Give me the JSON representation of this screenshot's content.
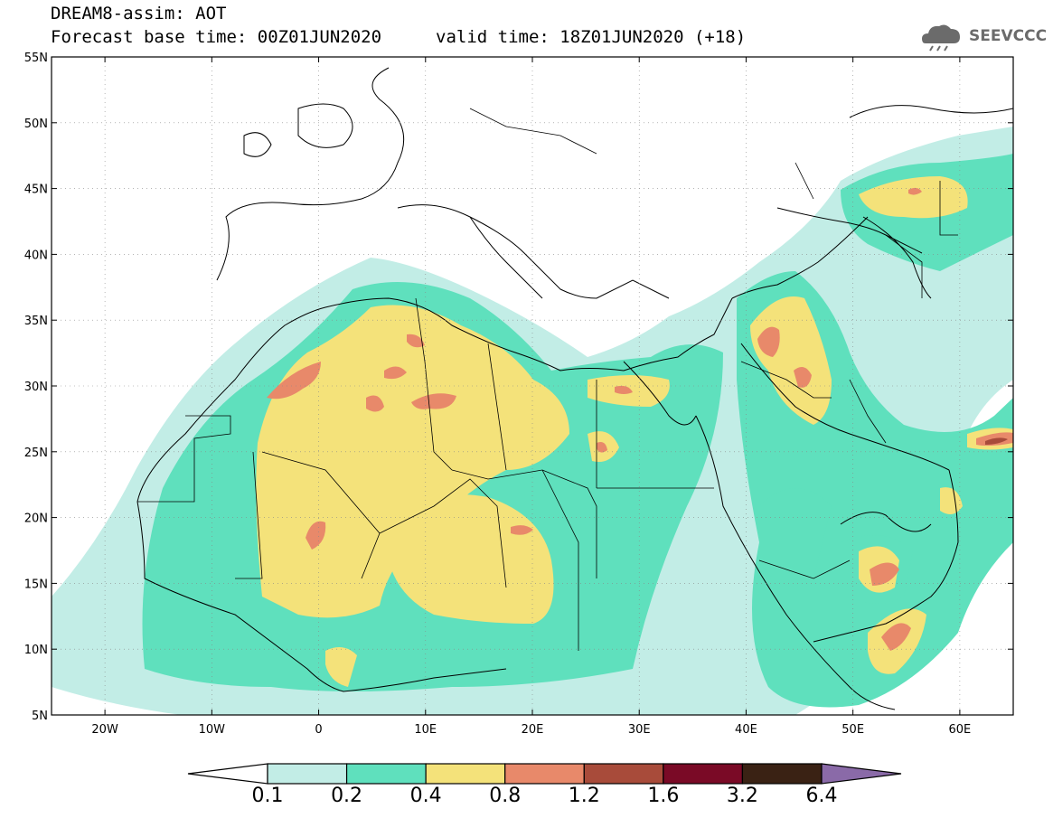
{
  "header": {
    "title_line1": "DREAM8-assim: AOT",
    "title_line2_left": "Forecast base time: 00Z01JUN2020",
    "title_line2_right": "valid time: 18Z01JUN2020 (+18)",
    "logo_text": "SEEVCCC",
    "logo_icon": "cloud-rain-icon"
  },
  "map": {
    "lat_labels": [
      "55N",
      "50N",
      "45N",
      "40N",
      "35N",
      "30N",
      "25N",
      "20N",
      "15N",
      "10N",
      "5N"
    ],
    "lat_values": [
      55,
      50,
      45,
      40,
      35,
      30,
      25,
      20,
      15,
      10,
      5
    ],
    "lon_labels": [
      "20W",
      "10W",
      "0",
      "10E",
      "20E",
      "30E",
      "40E",
      "50E",
      "60E"
    ],
    "lon_values": [
      -20,
      -10,
      0,
      10,
      20,
      30,
      40,
      50,
      60
    ],
    "lon_range": [
      -25,
      65
    ],
    "lat_range": [
      5,
      55
    ],
    "grid": "dotted"
  },
  "colorbar": {
    "levels": [
      "0.1",
      "0.2",
      "0.4",
      "0.8",
      "1.2",
      "1.6",
      "3.2",
      "6.4"
    ],
    "colors": [
      "#ffffff",
      "#c2ede6",
      "#5fe0bd",
      "#f4e27a",
      "#e8896a",
      "#a84b3a",
      "#7a0a26",
      "#3a2214",
      "#8a6aa8"
    ]
  }
}
